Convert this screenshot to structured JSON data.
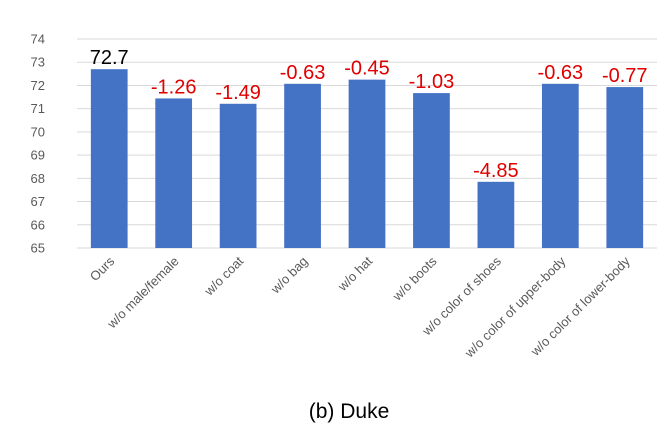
{
  "chart_data": {
    "type": "bar",
    "categories": [
      "Ours",
      "w/o male/female",
      "w/o coat",
      "w/o bag",
      "w/o hat",
      "w/o boots",
      "w/o color of shoes",
      "w/o color of upper-body",
      "w/o color of lower-body"
    ],
    "values": [
      72.7,
      71.44,
      71.21,
      72.07,
      72.25,
      71.67,
      67.85,
      72.07,
      71.93
    ],
    "data_labels": [
      "72.7",
      "-1.26",
      "-1.49",
      "-0.63",
      "-0.45",
      "-1.03",
      "-4.85",
      "-0.63",
      "-0.77"
    ],
    "y_ticks": [
      "65",
      "66",
      "67",
      "68",
      "69",
      "70",
      "71",
      "72",
      "73",
      "74"
    ],
    "ylim": [
      65,
      74
    ],
    "title": "",
    "xlabel": "",
    "ylabel": "",
    "caption": "(b) Duke",
    "grid": true,
    "legend": "none",
    "colors": {
      "bar": "#4472C4",
      "grid": "#D9D9D9",
      "baseline_label": "#000000",
      "delta_label": "#E00000"
    }
  }
}
